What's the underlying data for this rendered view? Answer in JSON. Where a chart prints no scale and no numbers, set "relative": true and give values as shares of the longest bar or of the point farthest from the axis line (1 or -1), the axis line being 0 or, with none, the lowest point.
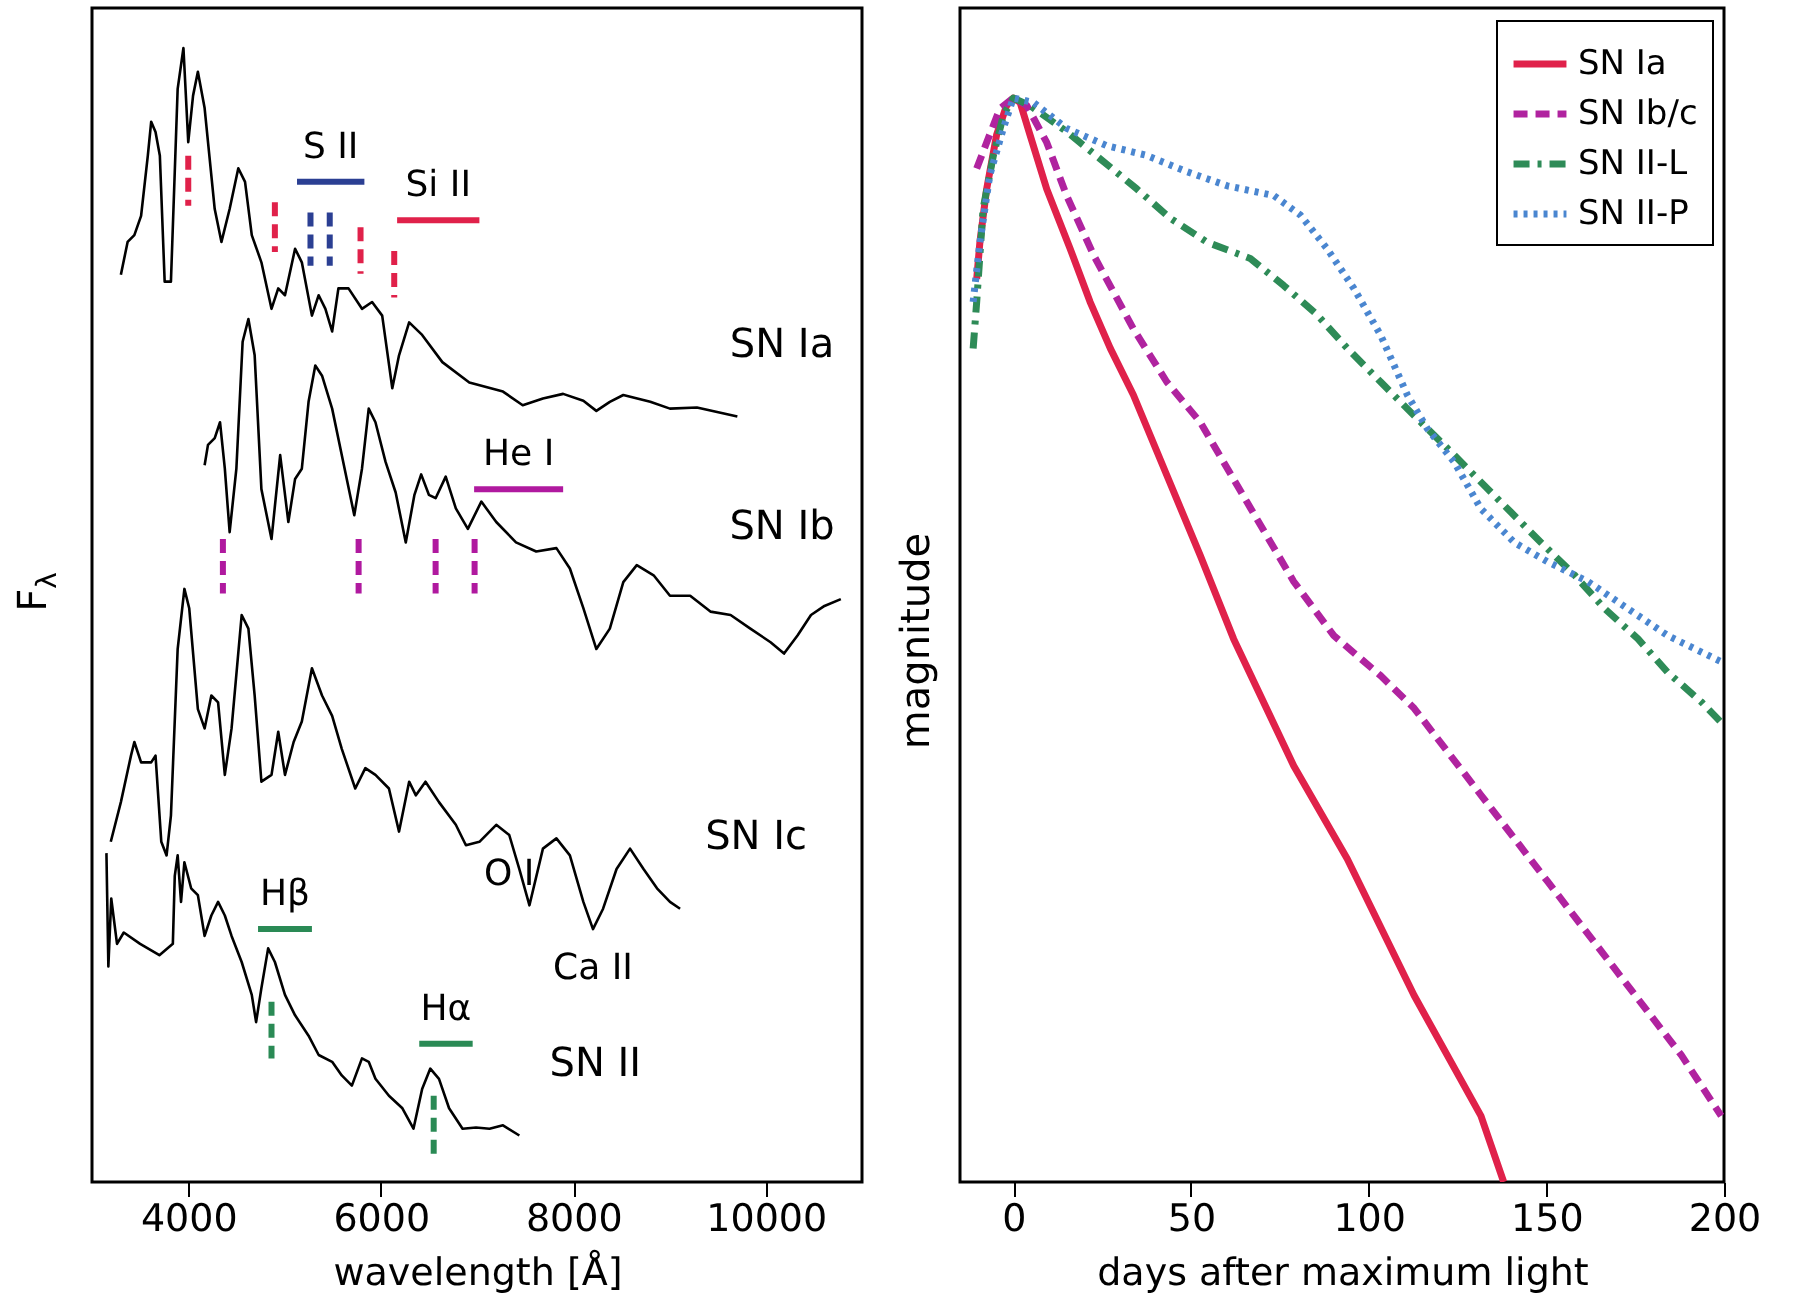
{
  "chart_data": [
    {
      "type": "line",
      "xlabel": "wavelength [Å]",
      "ylabel": "F$_{λ}$",
      "relative": true,
      "xlim": [
        3000,
        11000
      ],
      "xticks": [
        4000,
        6000,
        8000,
        10000
      ],
      "series": [
        {
          "name": "SN Ia",
          "color": "#000000",
          "x": [
            3300,
            3370,
            3440,
            3510,
            3580,
            3615,
            3660,
            3705,
            3755,
            3820,
            3890,
            3950,
            4000,
            4050,
            4100,
            4170,
            4275,
            4345,
            4430,
            4520,
            4590,
            4660,
            4760,
            4865,
            4935,
            5005,
            5110,
            5180,
            5285,
            5355,
            5425,
            5495,
            5560,
            5665,
            5805,
            5910,
            6015,
            6120,
            6190,
            6295,
            6430,
            6640,
            6920,
            7270,
            7475,
            7685,
            7895,
            8105,
            8240,
            8380,
            8520,
            8800,
            9005,
            9285,
            9495,
            9705
          ],
          "values": [
            0.8,
            0.829,
            0.835,
            0.852,
            0.905,
            0.935,
            0.926,
            0.905,
            0.794,
            0.794,
            0.964,
            1.0,
            0.917,
            0.958,
            0.979,
            0.947,
            0.858,
            0.829,
            0.858,
            0.894,
            0.882,
            0.835,
            0.811,
            0.77,
            0.788,
            0.782,
            0.823,
            0.811,
            0.764,
            0.782,
            0.77,
            0.75,
            0.788,
            0.788,
            0.77,
            0.776,
            0.764,
            0.7,
            0.729,
            0.758,
            0.747,
            0.723,
            0.705,
            0.697,
            0.685,
            0.691,
            0.695,
            0.689,
            0.68,
            0.688,
            0.694,
            0.688,
            0.682,
            0.683,
            0.679,
            0.675
          ]
        },
        {
          "name": "SN Ib",
          "color": "#000000",
          "x": [
            4170,
            4205,
            4275,
            4330,
            4380,
            4430,
            4500,
            4565,
            4625,
            4690,
            4760,
            4865,
            4955,
            5040,
            5110,
            5180,
            5250,
            5320,
            5390,
            5495,
            5595,
            5725,
            5805,
            5875,
            5945,
            6050,
            6155,
            6260,
            6350,
            6420,
            6500,
            6570,
            6675,
            6780,
            6905,
            7045,
            7200,
            7405,
            7615,
            7825,
            7965,
            8105,
            8240,
            8380,
            8520,
            8660,
            8835,
            9005,
            9215,
            9425,
            9635,
            9840,
            10050,
            10190,
            10330,
            10470,
            10610,
            10780
          ],
          "values": [
            0.632,
            0.65,
            0.656,
            0.67,
            0.629,
            0.573,
            0.629,
            0.741,
            0.761,
            0.729,
            0.611,
            0.567,
            0.641,
            0.582,
            0.62,
            0.629,
            0.688,
            0.72,
            0.711,
            0.682,
            0.641,
            0.588,
            0.629,
            0.682,
            0.67,
            0.635,
            0.608,
            0.564,
            0.606,
            0.624,
            0.606,
            0.603,
            0.622,
            0.594,
            0.576,
            0.6,
            0.582,
            0.564,
            0.556,
            0.559,
            0.541,
            0.506,
            0.47,
            0.488,
            0.529,
            0.544,
            0.535,
            0.517,
            0.517,
            0.503,
            0.5,
            0.488,
            0.476,
            0.466,
            0.482,
            0.5,
            0.508,
            0.514
          ]
        },
        {
          "name": "SN Ic",
          "color": "#000000",
          "x": [
            3195,
            3300,
            3405,
            3440,
            3510,
            3615,
            3660,
            3720,
            3775,
            3820,
            3890,
            3960,
            4010,
            4100,
            4170,
            4240,
            4310,
            4380,
            4450,
            4555,
            4625,
            4690,
            4760,
            4865,
            4935,
            5005,
            5095,
            5180,
            5285,
            5390,
            5495,
            5595,
            5735,
            5840,
            5945,
            6085,
            6190,
            6295,
            6365,
            6465,
            6605,
            6780,
            6885,
            7025,
            7200,
            7335,
            7440,
            7545,
            7685,
            7825,
            7965,
            8105,
            8205,
            8310,
            8450,
            8590,
            8730,
            8870,
            9005,
            9110
          ],
          "values": [
            0.3,
            0.335,
            0.376,
            0.388,
            0.37,
            0.37,
            0.376,
            0.3,
            0.288,
            0.323,
            0.47,
            0.523,
            0.506,
            0.417,
            0.4,
            0.429,
            0.423,
            0.359,
            0.4,
            0.5,
            0.488,
            0.429,
            0.353,
            0.359,
            0.397,
            0.359,
            0.388,
            0.406,
            0.453,
            0.429,
            0.411,
            0.382,
            0.347,
            0.365,
            0.359,
            0.347,
            0.309,
            0.353,
            0.341,
            0.353,
            0.335,
            0.315,
            0.297,
            0.3,
            0.315,
            0.306,
            0.276,
            0.244,
            0.294,
            0.303,
            0.288,
            0.247,
            0.223,
            0.241,
            0.276,
            0.294,
            0.276,
            0.259,
            0.247,
            0.241
          ]
        },
        {
          "name": "SN II",
          "color": "#000000",
          "x": [
            3150,
            3170,
            3200,
            3260,
            3330,
            3500,
            3700,
            3840,
            3860,
            3890,
            3925,
            3960,
            4030,
            4100,
            4170,
            4240,
            4310,
            4380,
            4450,
            4555,
            4660,
            4705,
            4760,
            4830,
            4900,
            5005,
            5110,
            5250,
            5355,
            5495,
            5595,
            5700,
            5805,
            5875,
            5945,
            6085,
            6225,
            6340,
            6430,
            6515,
            6605,
            6710,
            6850,
            6990,
            7130,
            7270,
            7440
          ],
          "values": [
            0.29,
            0.19,
            0.25,
            0.21,
            0.22,
            0.21,
            0.2,
            0.21,
            0.27,
            0.288,
            0.247,
            0.282,
            0.259,
            0.253,
            0.217,
            0.235,
            0.247,
            0.235,
            0.217,
            0.194,
            0.165,
            0.141,
            0.171,
            0.206,
            0.194,
            0.165,
            0.147,
            0.129,
            0.112,
            0.106,
            0.094,
            0.085,
            0.109,
            0.106,
            0.091,
            0.076,
            0.065,
            0.047,
            0.082,
            0.1,
            0.091,
            0.065,
            0.047,
            0.048,
            0.047,
            0.05,
            0.041
          ]
        },
        {
          "color": "#e0214a",
          "line_style": "dashed",
          "x": [
            4000,
            4000
          ],
          "values": [
            0.905,
            0.861
          ]
        },
        {
          "color": "#e0214a",
          "line_style": "dashed",
          "x": [
            4900,
            4900
          ],
          "values": [
            0.864,
            0.82
          ]
        },
        {
          "color": "#2b3f93",
          "line_style": "dashed",
          "x": [
            5270,
            5270
          ],
          "values": [
            0.855,
            0.808
          ]
        },
        {
          "color": "#2b3f93",
          "line_style": "dashed",
          "x": [
            5470,
            5470
          ],
          "values": [
            0.855,
            0.808
          ]
        },
        {
          "color": "#e0214a",
          "line_style": "dashed",
          "x": [
            5790,
            5790
          ],
          "values": [
            0.842,
            0.801
          ]
        },
        {
          "color": "#e0214a",
          "line_style": "dashed",
          "x": [
            6140,
            6140
          ],
          "values": [
            0.821,
            0.78
          ]
        },
        {
          "name": "S II",
          "color": "#2b3f93",
          "line_style": "solid",
          "x": [
            5130,
            5830
          ],
          "values": [
            0.882,
            0.882
          ]
        },
        {
          "name": "Si II",
          "color": "#e0214a",
          "line_style": "solid",
          "x": [
            6170,
            7025
          ],
          "values": [
            0.848,
            0.848
          ]
        },
        {
          "name": "He I",
          "color": "#b0199f",
          "line_style": "solid",
          "x": [
            6970,
            7895
          ],
          "values": [
            0.611,
            0.611
          ]
        },
        {
          "color": "#b0199f",
          "line_style": "dashed",
          "x": [
            4360,
            4360
          ],
          "values": [
            0.567,
            0.519
          ]
        },
        {
          "color": "#b0199f",
          "line_style": "dashed",
          "x": [
            5770,
            5770
          ],
          "values": [
            0.567,
            0.519
          ]
        },
        {
          "color": "#b0199f",
          "line_style": "dashed",
          "x": [
            6570,
            6570
          ],
          "values": [
            0.567,
            0.519
          ]
        },
        {
          "color": "#b0199f",
          "line_style": "dashed",
          "x": [
            6975,
            6975
          ],
          "values": [
            0.567,
            0.519
          ]
        },
        {
          "name": "Hβ",
          "color": "#2a8a55",
          "line_style": "solid",
          "x": [
            4725,
            5285
          ],
          "values": [
            0.223,
            0.223
          ]
        },
        {
          "color": "#2a8a55",
          "line_style": "dashed",
          "x": [
            4865,
            4865
          ],
          "values": [
            0.159,
            0.109
          ]
        },
        {
          "name": "Hα",
          "color": "#2a8a55",
          "line_style": "solid",
          "x": [
            6400,
            6955
          ],
          "values": [
            0.122,
            0.122
          ]
        },
        {
          "color": "#2a8a55",
          "line_style": "dashed",
          "x": [
            6550,
            6550
          ],
          "values": [
            0.076,
            0.023
          ]
        }
      ],
      "annotations": [
        {
          "text": "O I",
          "x": 7335,
          "y": 0.306
        },
        {
          "text": "Ca II",
          "x": 8205,
          "y": 0.223
        }
      ]
    },
    {
      "type": "line",
      "xlabel": "days after maximum light",
      "ylabel": "magnitude",
      "relative": true,
      "xlim": [
        -15,
        200
      ],
      "xticks": [
        0,
        50,
        100,
        150,
        200
      ],
      "legend": "top right",
      "series": [
        {
          "name": "SN Ia",
          "color": "#e0214a",
          "line_style": "solid",
          "x": [
            -10.3,
            -9.4,
            -7.5,
            -4.7,
            -1.9,
            0,
            1.9,
            4.7,
            9.4,
            16.0,
            21.6,
            27.3,
            33.8,
            43.2,
            52.6,
            62.0,
            78.9,
            94.0,
            112.8,
            131.6,
            138
          ],
          "values": [
            0.833,
            0.867,
            0.916,
            0.966,
            0.993,
            1.0,
            0.996,
            0.966,
            0.916,
            0.861,
            0.812,
            0.769,
            0.726,
            0.652,
            0.578,
            0.501,
            0.384,
            0.298,
            0.172,
            0.061,
            0
          ]
        },
        {
          "name": "SN Ib/c",
          "color": "#b0239f",
          "line_style": "dashed",
          "x": [
            -10.3,
            -7.5,
            -3.8,
            0,
            3.8,
            9.4,
            15.0,
            22.6,
            33.8,
            43.2,
            52.6,
            65.8,
            78.9,
            90.2,
            103.4,
            112.8,
            131.6,
            150.4,
            169.2,
            188.0,
            199.2
          ],
          "values": [
            0.935,
            0.959,
            0.99,
            1.0,
            0.993,
            0.959,
            0.91,
            0.855,
            0.787,
            0.738,
            0.701,
            0.627,
            0.554,
            0.504,
            0.467,
            0.437,
            0.357,
            0.277,
            0.197,
            0.117,
            0.061
          ]
        },
        {
          "name": "SN II-L",
          "color": "#2e8b57",
          "line_style": "dashdot",
          "x": [
            -11.3,
            -10.3,
            -8.5,
            -5.6,
            -2.8,
            0,
            4.7,
            15.0,
            24.4,
            34.8,
            44.2,
            54.5,
            66.7,
            76.1,
            85.5,
            94.0,
            103.4,
            112.8,
            121.2,
            130.6,
            140.0,
            148.5,
            157.9,
            166.4,
            175.8,
            184.2,
            193.6,
            199.2
          ],
          "values": [
            0.769,
            0.812,
            0.898,
            0.947,
            0.984,
            1.0,
            0.993,
            0.969,
            0.944,
            0.916,
            0.889,
            0.867,
            0.852,
            0.827,
            0.8,
            0.769,
            0.738,
            0.707,
            0.68,
            0.649,
            0.618,
            0.59,
            0.56,
            0.529,
            0.501,
            0.47,
            0.443,
            0.424
          ]
        },
        {
          "name": "SN II-P",
          "color": "#4a86d0",
          "line_style": "dotted",
          "x": [
            -11.3,
            -9.4,
            -6.6,
            -2.8,
            0,
            5.6,
            15.0,
            26.3,
            37.6,
            48.9,
            60.2,
            73.3,
            80.8,
            88.3,
            95.9,
            103.4,
            110.9,
            116.5,
            124.1,
            131.6,
            141.0,
            150.4,
            161.7,
            172.9,
            184.2,
            199.2
          ],
          "values": [
            0.812,
            0.867,
            0.929,
            0.972,
            1.0,
            0.996,
            0.972,
            0.956,
            0.947,
            0.932,
            0.919,
            0.91,
            0.892,
            0.861,
            0.824,
            0.781,
            0.726,
            0.695,
            0.664,
            0.621,
            0.59,
            0.572,
            0.554,
            0.529,
            0.504,
            0.48
          ]
        }
      ]
    }
  ]
}
